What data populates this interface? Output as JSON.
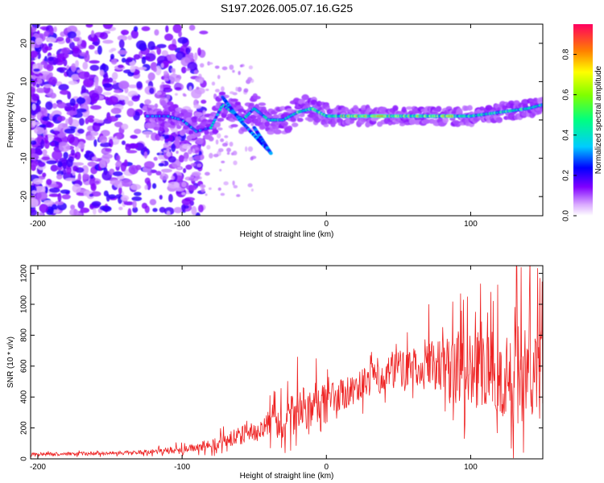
{
  "title": "S197.2026.005.07.16.G25",
  "chart_data": [
    {
      "type": "heatmap",
      "xlabel": "Height of straight line (km)",
      "ylabel": "Frequency (Hz)",
      "xlim": [
        -205,
        150
      ],
      "ylim": [
        -25,
        25
      ],
      "xticks": [
        -200,
        -100,
        0,
        100
      ],
      "yticks": [
        20,
        10,
        0,
        -10,
        -20
      ],
      "ridge": {
        "x": [
          -120,
          -110,
          -100,
          -90,
          -80,
          -72,
          -65,
          -58,
          -50,
          -40,
          -30,
          -20,
          -10,
          0,
          10,
          20,
          40,
          60,
          80,
          100,
          120,
          140,
          150
        ],
        "frequency": [
          1,
          1,
          0,
          -3,
          -2,
          4,
          2,
          0,
          3,
          0,
          0,
          2,
          3,
          1,
          1,
          1,
          1,
          1,
          1,
          1,
          2,
          3,
          4
        ]
      },
      "colorbar": {
        "label": "Normalized spectral amplitude",
        "ticks": [
          "0.0",
          "0.2",
          "0.4",
          "0.6",
          "0.8"
        ],
        "range": [
          0,
          0.95
        ]
      }
    },
    {
      "type": "line",
      "xlabel": "Height of straight line (km)",
      "ylabel": "SNR (10 * v/v)",
      "xlim": [
        -205,
        150
      ],
      "ylim": [
        0,
        1250
      ],
      "xticks": [
        -200,
        -100,
        0,
        100
      ],
      "yticks": [
        0,
        200,
        400,
        600,
        800,
        1000,
        1200
      ],
      "color": "#ee2222",
      "envelope": {
        "x": [
          -205,
          -150,
          -120,
          -100,
          -80,
          -60,
          -40,
          -30,
          -20,
          -10,
          0,
          20,
          40,
          60,
          80,
          100,
          120,
          140,
          150
        ],
        "mean": [
          30,
          35,
          45,
          60,
          90,
          150,
          220,
          250,
          300,
          350,
          380,
          450,
          560,
          600,
          590,
          560,
          560,
          580,
          560
        ],
        "spread": [
          10,
          12,
          15,
          25,
          40,
          60,
          90,
          110,
          150,
          150,
          100,
          100,
          120,
          130,
          180,
          250,
          300,
          350,
          300
        ]
      },
      "peaks": [
        {
          "x": 135,
          "y": 1240
        },
        {
          "x": 148,
          "y": 1170
        },
        {
          "x": 114,
          "y": 1080
        },
        {
          "x": 93,
          "y": 1070
        },
        {
          "x": 71,
          "y": 1000
        },
        {
          "x": -7,
          "y": 650
        },
        {
          "x": -20,
          "y": 660
        }
      ]
    }
  ]
}
